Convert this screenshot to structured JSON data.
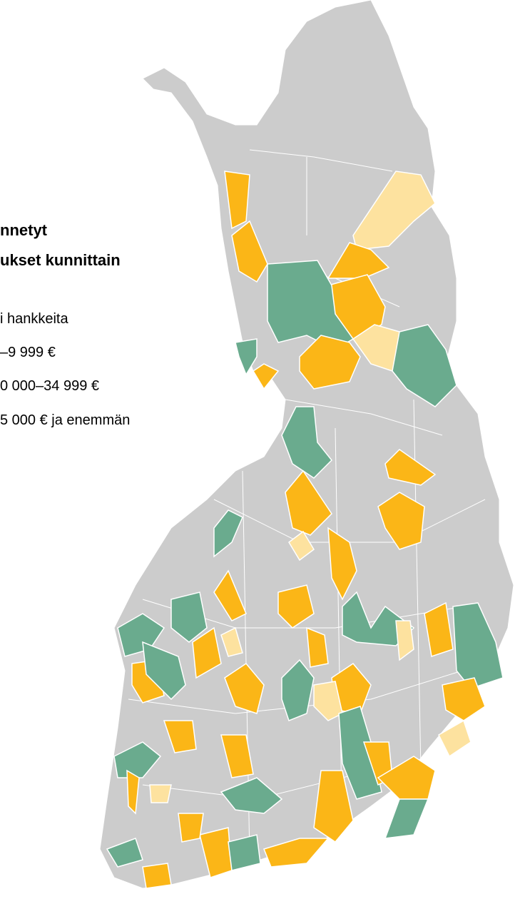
{
  "title": [
    "nnetyt",
    "ukset kunnittain"
  ],
  "legend": [
    "i hankkeita",
    "–9 999 €",
    "0 000–34 999 €",
    "5 000 € ja enemmän"
  ]
}
